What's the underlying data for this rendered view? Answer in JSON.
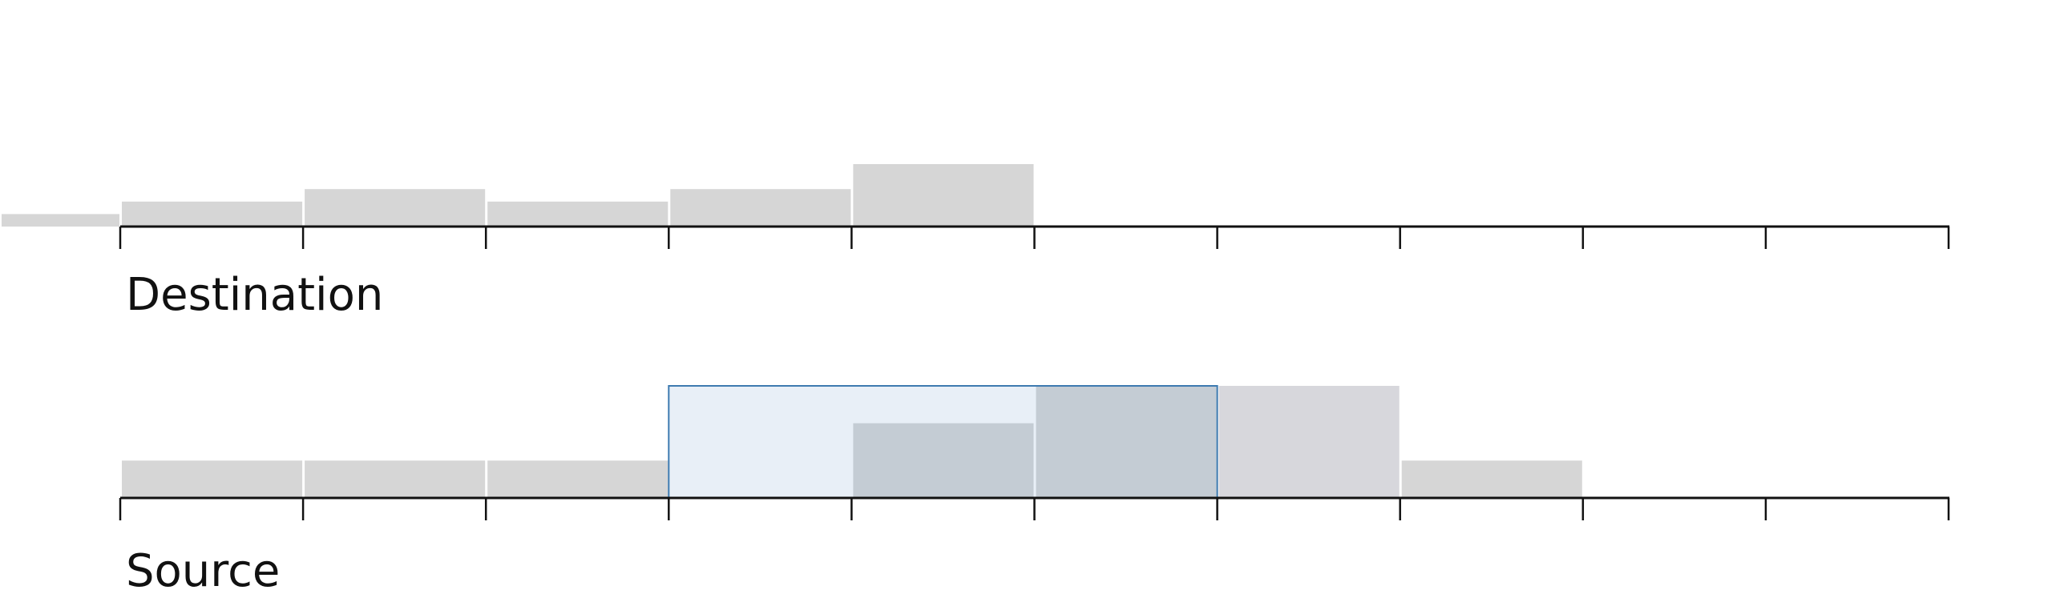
{
  "chart_data": [
    {
      "type": "histogram",
      "label": "Destination",
      "bins": [
        -2,
        0,
        1,
        2,
        3,
        4,
        5
      ],
      "counts": [
        1,
        2,
        3,
        2,
        3,
        5
      ],
      "colors": [
        "#d6d6d6",
        "#d6d6d6",
        "#d6d6d6",
        "#d6d6d6",
        "#d6d6d6",
        "#d6d6d6"
      ],
      "xlim": [
        0,
        10
      ],
      "xticks": [
        0,
        1,
        2,
        3,
        4,
        5,
        6,
        7,
        8,
        9,
        10
      ],
      "ylim": [
        0,
        5
      ]
    },
    {
      "type": "histogram",
      "label": "Source",
      "bins": [
        0,
        1,
        2,
        3,
        4,
        5,
        6,
        7,
        8
      ],
      "counts": [
        1,
        1,
        1,
        0,
        2,
        3,
        3,
        1
      ],
      "colors": [
        "#d6d6d6",
        "#d6d6d6",
        "#d6d6d6",
        "#c4ccd4",
        "#c4ccd4",
        "#c4ccd4",
        "#d7d7dc",
        "#d6d6d6"
      ],
      "xlim": [
        0,
        10
      ],
      "xticks": [
        0,
        1,
        2,
        3,
        4,
        5,
        6,
        7,
        8,
        9,
        10
      ],
      "ylim": [
        0,
        3
      ],
      "selection": [
        3,
        6
      ],
      "selection_color": "#e8eff7",
      "selection_stroke": "#3d7ab0"
    }
  ]
}
